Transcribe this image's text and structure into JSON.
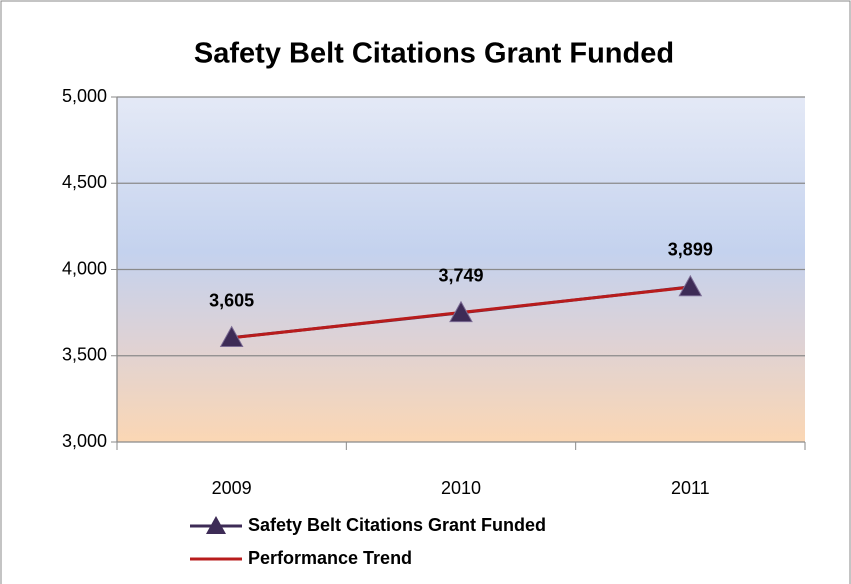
{
  "chart_data": {
    "type": "line",
    "title": "Safety Belt Citations Grant Funded",
    "categories": [
      "2009",
      "2010",
      "2011"
    ],
    "series": [
      {
        "name": "Safety Belt Citations Grant Funded",
        "color": "#3d2b56",
        "marker": "triangle",
        "values": [
          3605,
          3749,
          3899
        ],
        "value_labels": [
          "3,605",
          "3,749",
          "3,899"
        ]
      },
      {
        "name": "Performance Trend",
        "color": "#b81c1c",
        "values": [
          3604,
          3751,
          3898
        ]
      }
    ],
    "ylim": [
      3000,
      5000
    ],
    "yticks": [
      {
        "value": 3000,
        "label": "3,000"
      },
      {
        "value": 3500,
        "label": "3,500"
      },
      {
        "value": 4000,
        "label": "4,000"
      },
      {
        "value": 4500,
        "label": "4,500"
      },
      {
        "value": 5000,
        "label": "5,000"
      }
    ],
    "grid": true,
    "legend": "bottom"
  }
}
